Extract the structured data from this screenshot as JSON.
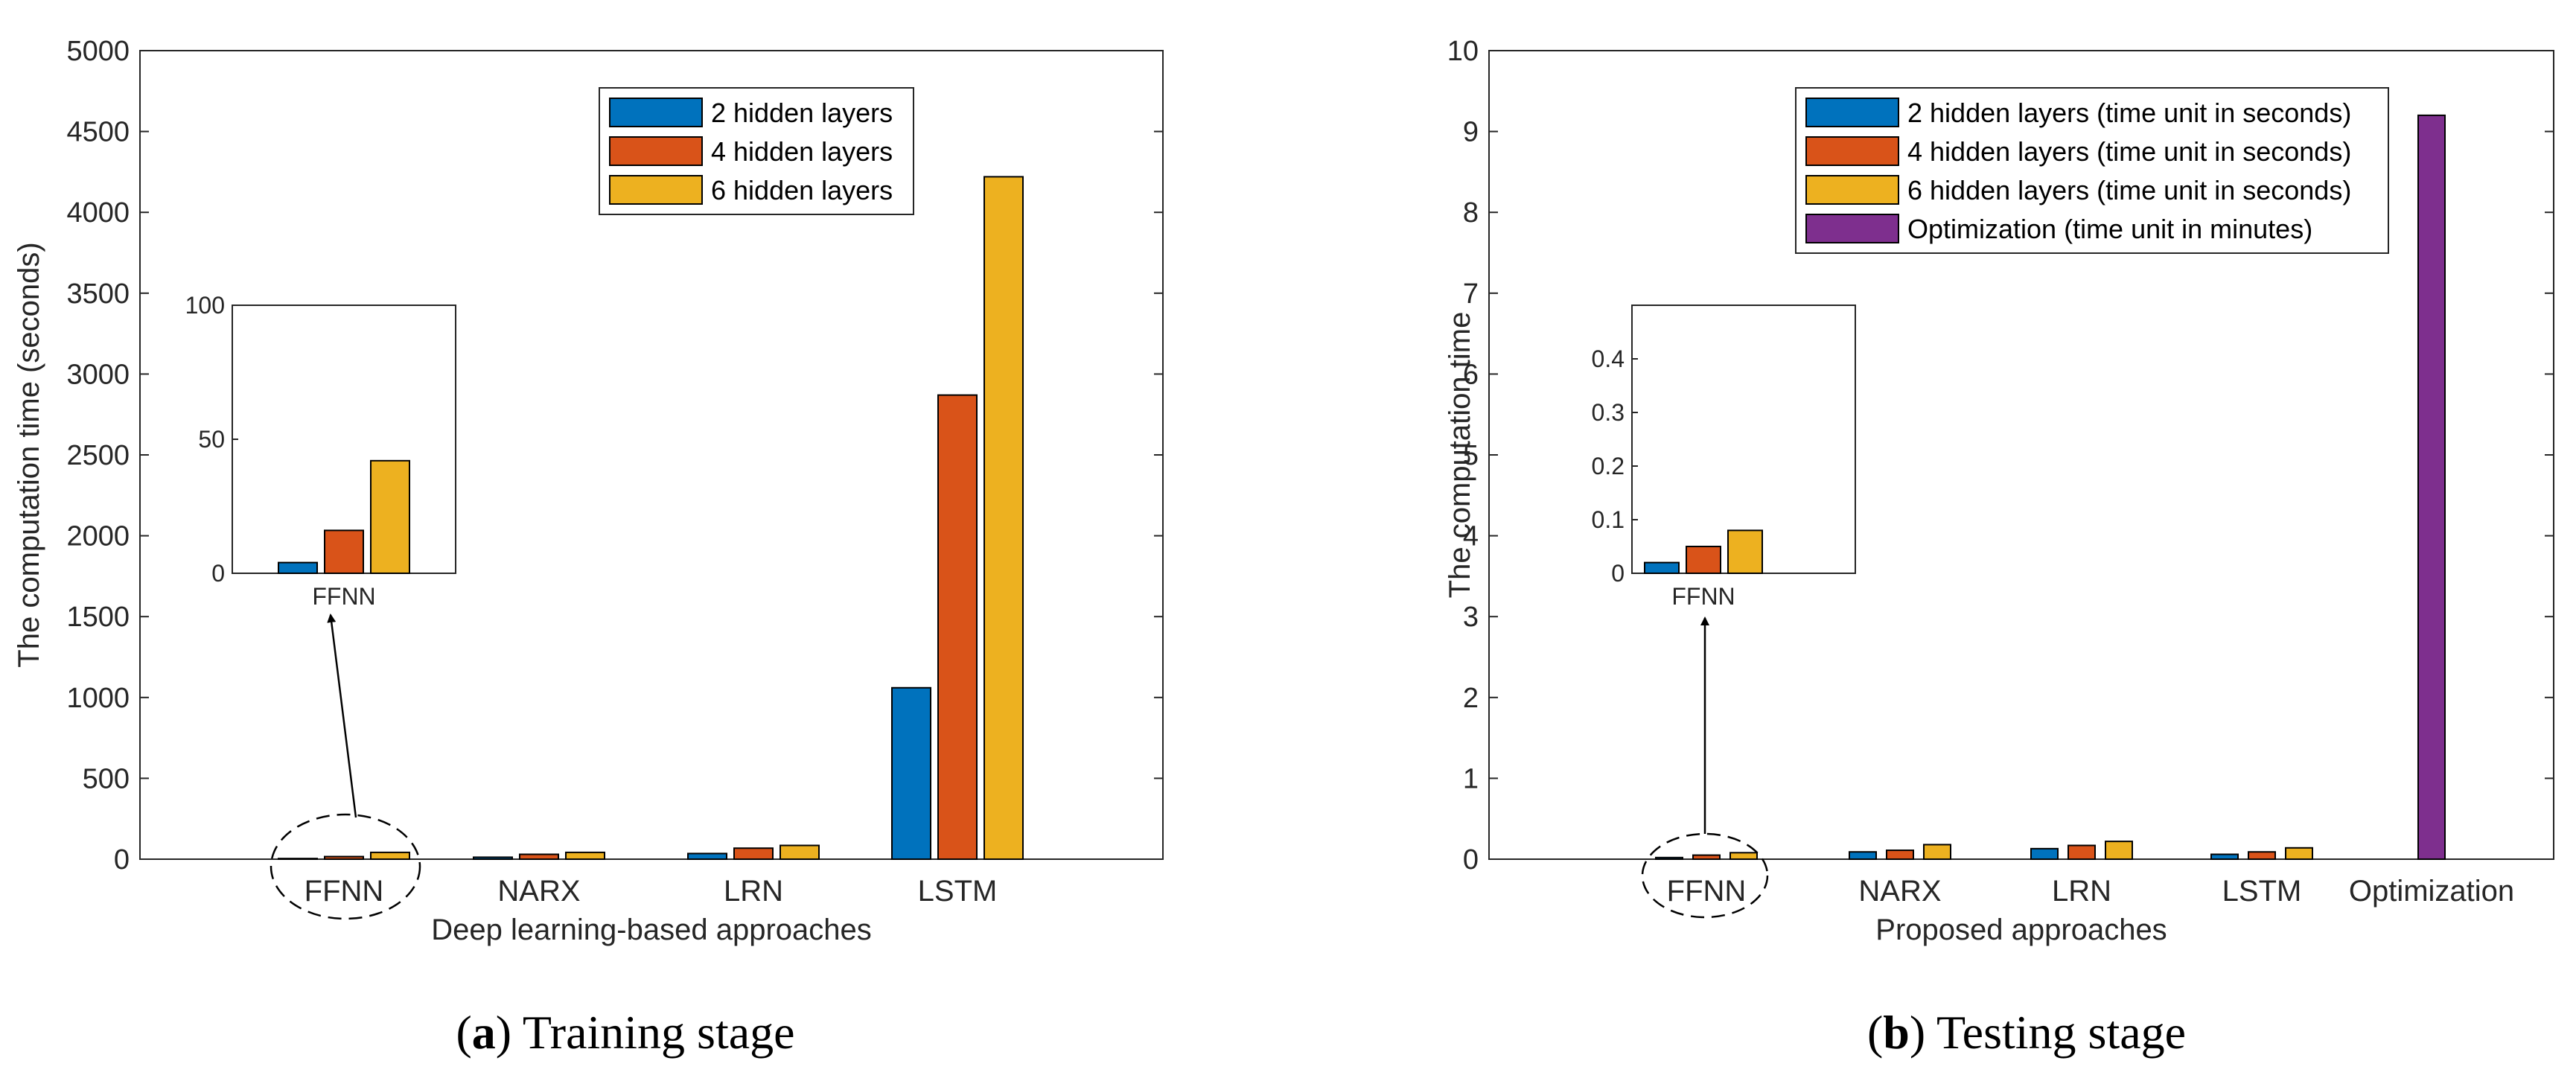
{
  "colors": {
    "blue": "#0072BD",
    "orange": "#D95319",
    "yellow": "#EDB120",
    "purple": "#7E2F8E"
  },
  "chart_data": [
    {
      "type": "bar",
      "caption_label": "a",
      "caption_text": "Training stage",
      "xlabel": "Deep learning-based approaches",
      "ylabel": "The computation time (seconds)",
      "ylim": [
        0,
        5000
      ],
      "yticks": [
        "0",
        "500",
        "1000",
        "1500",
        "2000",
        "2500",
        "3000",
        "3500",
        "4000",
        "4500",
        "5000"
      ],
      "categories": [
        "FFNN",
        "NARX",
        "LRN",
        "LSTM"
      ],
      "legend_position": "top-right",
      "series": [
        {
          "name": "2 hidden layers",
          "color": "blue",
          "values": [
            4,
            12,
            35,
            1060
          ]
        },
        {
          "name": "4 hidden layers",
          "color": "orange",
          "values": [
            16,
            30,
            68,
            2870
          ]
        },
        {
          "name": "6 hidden layers",
          "color": "yellow",
          "values": [
            42,
            42,
            85,
            4220
          ]
        }
      ],
      "inset": {
        "label": "FFNN",
        "ylim": [
          0,
          100
        ],
        "yticks": [
          "0",
          "50",
          "100"
        ],
        "values": [
          4,
          16,
          42
        ]
      }
    },
    {
      "type": "bar",
      "caption_label": "b",
      "caption_text": "Testing stage",
      "xlabel": "Proposed approaches",
      "ylabel": "The computation time",
      "ylim": [
        0,
        10
      ],
      "yticks": [
        "0",
        "1",
        "2",
        "3",
        "4",
        "5",
        "6",
        "7",
        "8",
        "9",
        "10"
      ],
      "categories": [
        "FFNN",
        "NARX",
        "LRN",
        "LSTM",
        "Optimization"
      ],
      "legend_position": "top-right",
      "series": [
        {
          "name": "2 hidden layers (time unit in seconds)",
          "color": "blue",
          "values": [
            0.02,
            0.09,
            0.13,
            0.06,
            null
          ]
        },
        {
          "name": "4 hidden layers (time unit in seconds)",
          "color": "orange",
          "values": [
            0.05,
            0.11,
            0.17,
            0.09,
            null
          ]
        },
        {
          "name": "6 hidden layers (time unit in seconds)",
          "color": "yellow",
          "values": [
            0.08,
            0.18,
            0.22,
            0.14,
            null
          ]
        },
        {
          "name": "Optimization (time unit in minutes)",
          "color": "purple",
          "values": [
            null,
            null,
            null,
            null,
            9.2
          ]
        }
      ],
      "inset": {
        "label": "FFNN",
        "ylim": [
          0,
          0.5
        ],
        "yticks": [
          "0",
          "0.1",
          "0.2",
          "0.3",
          "0.4"
        ],
        "values": [
          0.02,
          0.05,
          0.08
        ]
      }
    }
  ]
}
